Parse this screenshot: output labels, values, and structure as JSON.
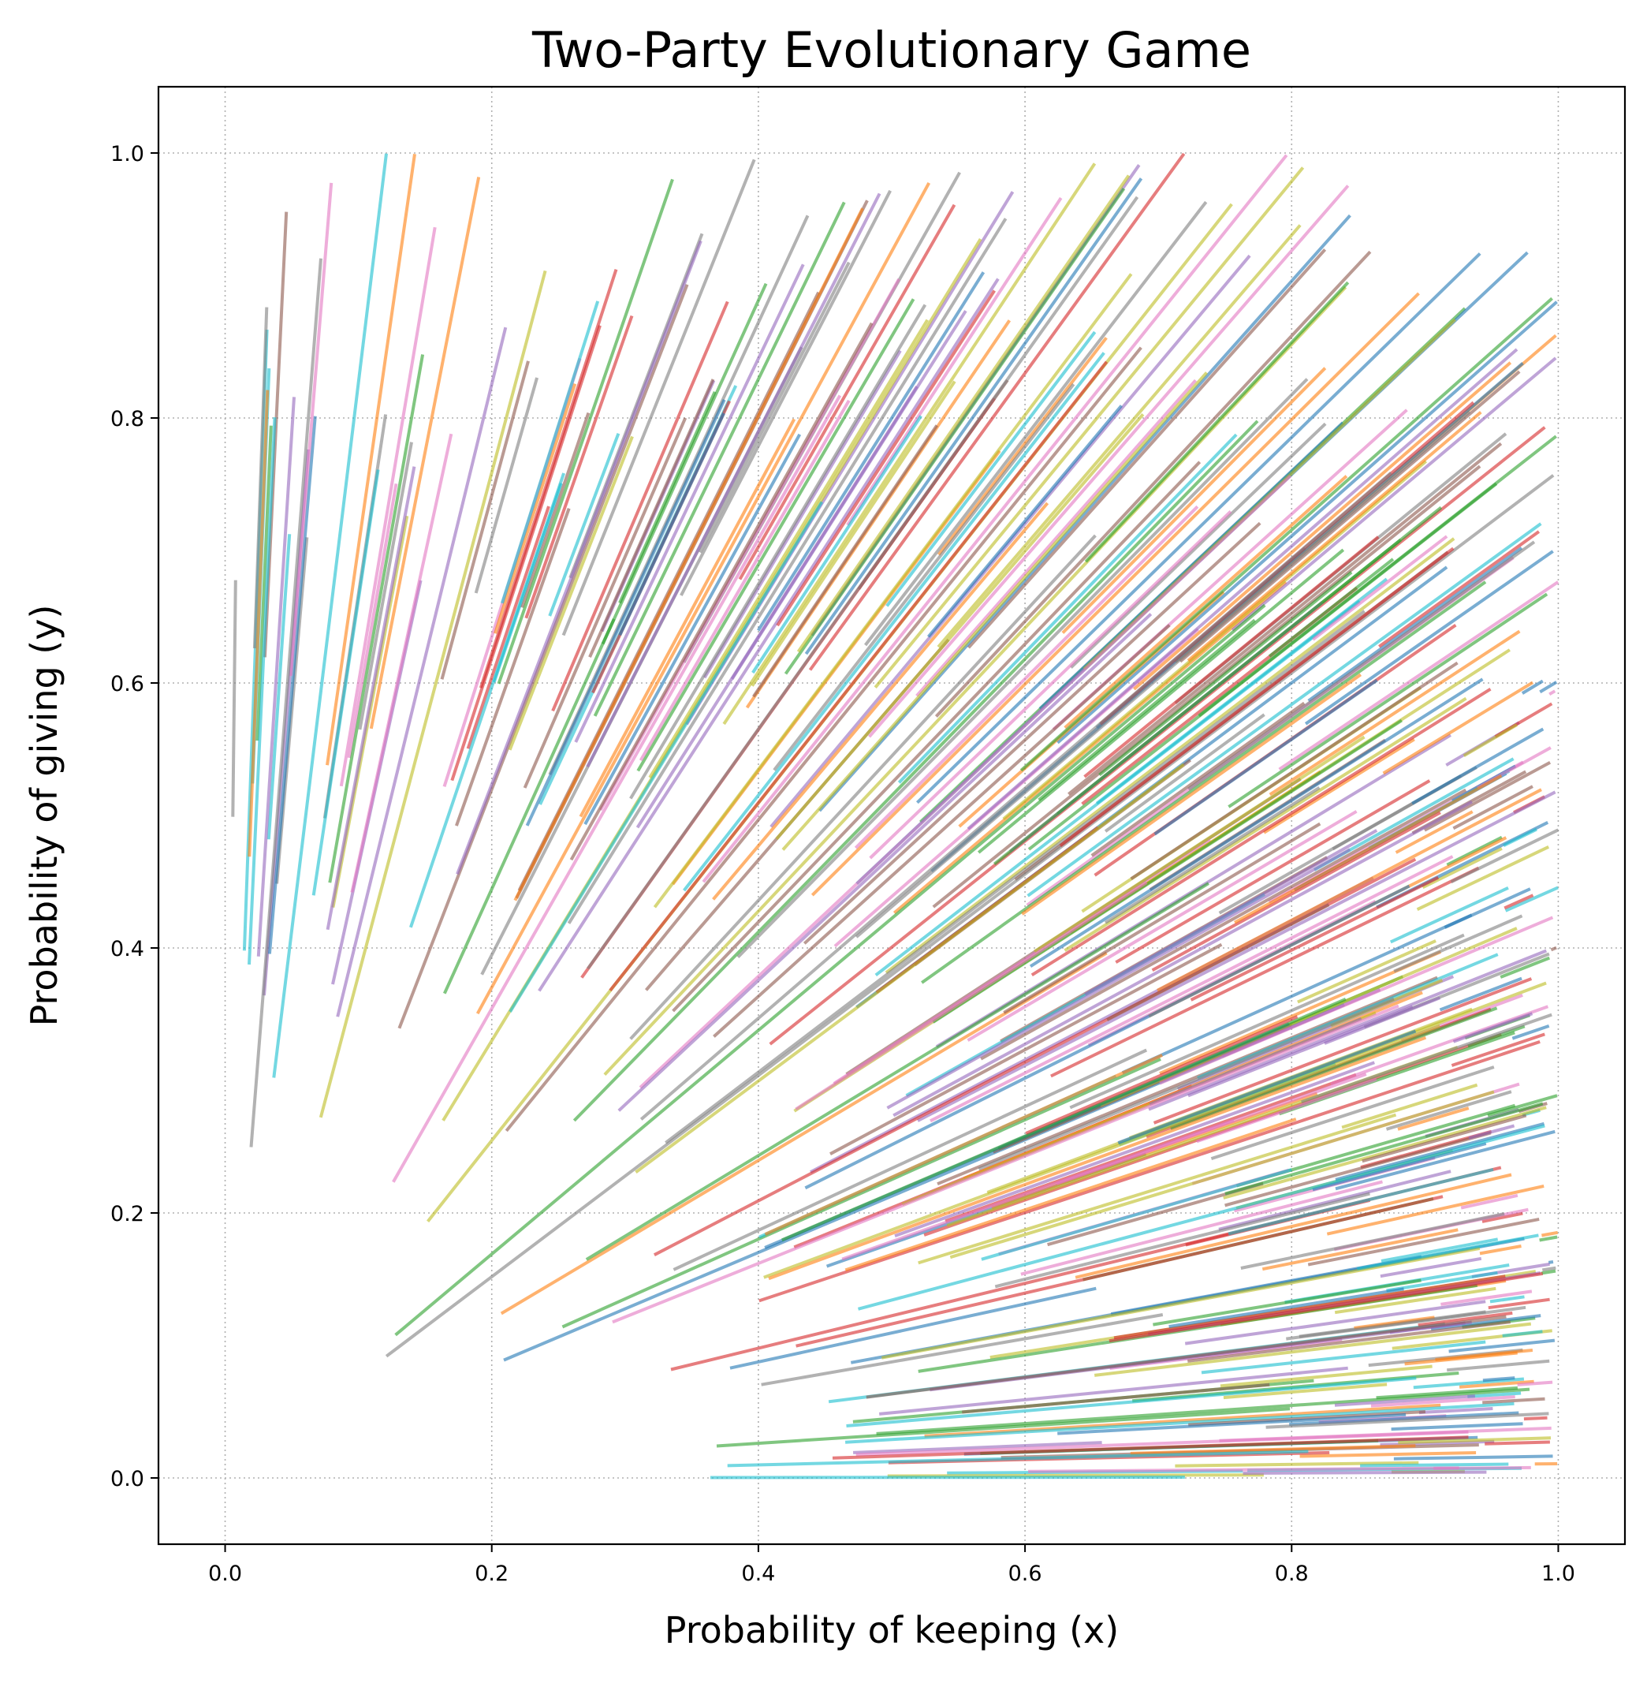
{
  "chart_data": {
    "type": "line",
    "title": "Two-Party Evolutionary Game",
    "xlabel": "Probability of keeping (x)",
    "ylabel": "Probability of giving (y)",
    "xlim": [
      -0.05,
      1.05
    ],
    "ylim": [
      -0.05,
      1.05
    ],
    "xticks": [
      "0.0",
      "0.2",
      "0.4",
      "0.6",
      "0.8",
      "1.0"
    ],
    "yticks": [
      "0.0",
      "0.2",
      "0.4",
      "0.6",
      "0.8",
      "1.0"
    ],
    "grid": true,
    "grid_style": "dotted",
    "line_alpha": 0.6,
    "series_description_values": {
      "trajectory_count": 500,
      "dynamics": "trajectories flow toward (1,1) along power curves y = y0*(x/x0)^k, clipped at x=1 or y=1"
    },
    "palette": [
      "#1f77b4",
      "#ff7f0e",
      "#2ca02c",
      "#d62728",
      "#9467bd",
      "#8c564b",
      "#e377c2",
      "#7f7f7f",
      "#bcbd22",
      "#17becf"
    ],
    "trajectories": {
      "count": 500,
      "x_start_range": [
        0.0,
        1.0
      ],
      "y_start_range": [
        0.0,
        1.0
      ]
    }
  }
}
